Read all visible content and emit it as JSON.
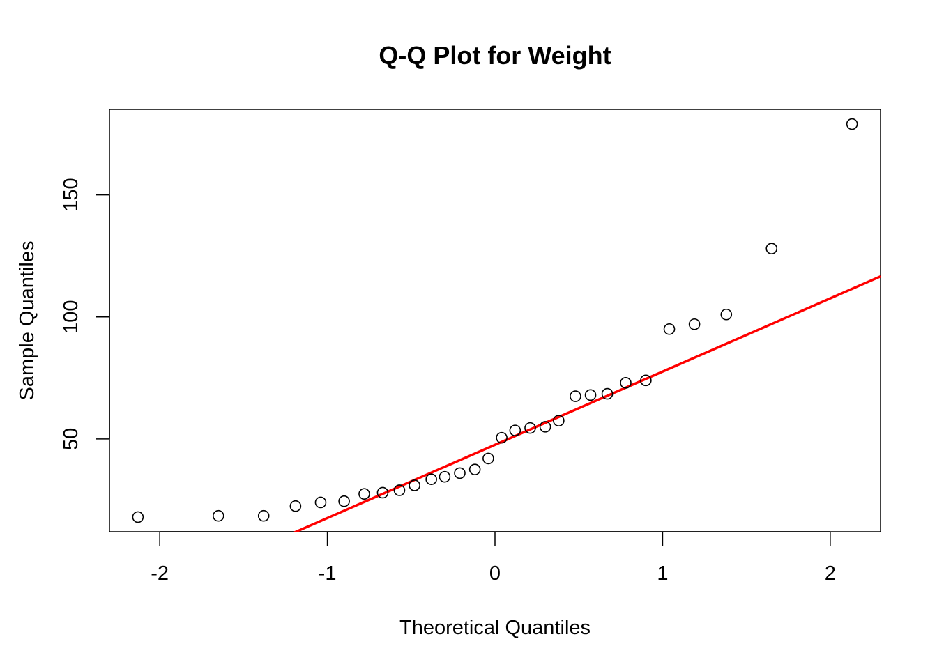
{
  "chart_data": {
    "type": "scatter",
    "title": "Q-Q Plot for Weight",
    "xlabel": "Theoretical Quantiles",
    "ylabel": "Sample Quantiles",
    "xlim": [
      -2.3,
      2.3
    ],
    "ylim": [
      12,
      185
    ],
    "x_ticks": [
      {
        "value": -2,
        "label": "-2"
      },
      {
        "value": -1,
        "label": "-1"
      },
      {
        "value": 0,
        "label": "0"
      },
      {
        "value": 1,
        "label": "1"
      },
      {
        "value": 2,
        "label": "2"
      }
    ],
    "y_ticks": [
      {
        "value": 50,
        "label": "50"
      },
      {
        "value": 100,
        "label": "100"
      },
      {
        "value": 150,
        "label": "150"
      }
    ],
    "grid": false,
    "legend": "none",
    "points": [
      {
        "x": -2.13,
        "y": 18.0
      },
      {
        "x": -1.65,
        "y": 18.5
      },
      {
        "x": -1.38,
        "y": 18.5
      },
      {
        "x": -1.19,
        "y": 22.5
      },
      {
        "x": -1.04,
        "y": 24.0
      },
      {
        "x": -0.9,
        "y": 24.5
      },
      {
        "x": -0.78,
        "y": 27.5
      },
      {
        "x": -0.67,
        "y": 28.0
      },
      {
        "x": -0.57,
        "y": 29.0
      },
      {
        "x": -0.48,
        "y": 31.0
      },
      {
        "x": -0.38,
        "y": 33.5
      },
      {
        "x": -0.3,
        "y": 34.5
      },
      {
        "x": -0.21,
        "y": 36.0
      },
      {
        "x": -0.12,
        "y": 37.5
      },
      {
        "x": -0.04,
        "y": 42.0
      },
      {
        "x": 0.04,
        "y": 50.5
      },
      {
        "x": 0.12,
        "y": 53.5
      },
      {
        "x": 0.21,
        "y": 54.5
      },
      {
        "x": 0.3,
        "y": 55.0
      },
      {
        "x": 0.38,
        "y": 57.5
      },
      {
        "x": 0.48,
        "y": 67.5
      },
      {
        "x": 0.57,
        "y": 68.0
      },
      {
        "x": 0.67,
        "y": 68.5
      },
      {
        "x": 0.78,
        "y": 73.0
      },
      {
        "x": 0.9,
        "y": 74.0
      },
      {
        "x": 1.04,
        "y": 95.0
      },
      {
        "x": 1.19,
        "y": 97.0
      },
      {
        "x": 1.38,
        "y": 101.0
      },
      {
        "x": 1.65,
        "y": 128.0
      },
      {
        "x": 2.13,
        "y": 179.0
      }
    ],
    "reference_line": {
      "intercept": 47.6,
      "slope": 30.0,
      "color": "#ff0000"
    },
    "point_style": {
      "shape": "open-circle",
      "color": "#000000"
    }
  }
}
